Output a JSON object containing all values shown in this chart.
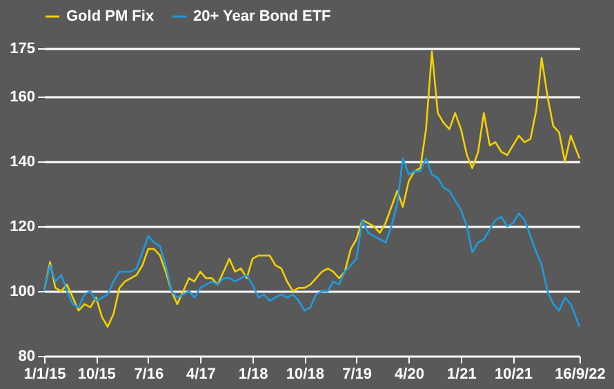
{
  "chart_data": {
    "type": "line",
    "xticks": [
      {
        "value": "2015-01-01",
        "label": "1/1/15"
      },
      {
        "value": "2015-10-01",
        "label": "10/15"
      },
      {
        "value": "2016-07-01",
        "label": "7/16"
      },
      {
        "value": "2017-04-01",
        "label": "4/17"
      },
      {
        "value": "2018-01-01",
        "label": "1/18"
      },
      {
        "value": "2018-10-01",
        "label": "10/18"
      },
      {
        "value": "2019-07-01",
        "label": "7/19"
      },
      {
        "value": "2020-04-01",
        "label": "4/20"
      },
      {
        "value": "2021-01-01",
        "label": "1/21"
      },
      {
        "value": "2021-10-01",
        "label": "10/21"
      },
      {
        "value": "2022-09-16",
        "label": "16/9/22"
      }
    ],
    "xlim": [
      "2015-01-01",
      "2022-09-16"
    ],
    "ylim": [
      80,
      175
    ],
    "yticks": [
      80,
      100,
      120,
      140,
      160,
      175
    ],
    "grid": "y",
    "legend": "top",
    "line_style": "solid",
    "marker": "none",
    "x": [
      "2015-01",
      "2015-02",
      "2015-03",
      "2015-04",
      "2015-05",
      "2015-06",
      "2015-07",
      "2015-08",
      "2015-09",
      "2015-10",
      "2015-11",
      "2015-12",
      "2016-01",
      "2016-02",
      "2016-03",
      "2016-04",
      "2016-05",
      "2016-06",
      "2016-07",
      "2016-08",
      "2016-09",
      "2016-10",
      "2016-11",
      "2016-12",
      "2017-01",
      "2017-02",
      "2017-03",
      "2017-04",
      "2017-05",
      "2017-06",
      "2017-07",
      "2017-08",
      "2017-09",
      "2017-10",
      "2017-11",
      "2017-12",
      "2018-01",
      "2018-02",
      "2018-03",
      "2018-04",
      "2018-05",
      "2018-06",
      "2018-07",
      "2018-08",
      "2018-09",
      "2018-10",
      "2018-11",
      "2018-12",
      "2019-01",
      "2019-02",
      "2019-03",
      "2019-04",
      "2019-05",
      "2019-06",
      "2019-07",
      "2019-08",
      "2019-09",
      "2019-10",
      "2019-11",
      "2019-12",
      "2020-01",
      "2020-02",
      "2020-03",
      "2020-04",
      "2020-05",
      "2020-06",
      "2020-07",
      "2020-08",
      "2020-09",
      "2020-10",
      "2020-11",
      "2020-12",
      "2021-01",
      "2021-02",
      "2021-03",
      "2021-04",
      "2021-05",
      "2021-06",
      "2021-07",
      "2021-08",
      "2021-09",
      "2021-10",
      "2021-11",
      "2021-12",
      "2022-01",
      "2022-02",
      "2022-03",
      "2022-04",
      "2022-05",
      "2022-06",
      "2022-07",
      "2022-08",
      "2022-09-16"
    ],
    "series": [
      {
        "name": "Gold PM Fix",
        "color": "#f5d000",
        "values": [
          100,
          109,
          101,
          100,
          102,
          98,
          94,
          96,
          95,
          98,
          92,
          89,
          93,
          101,
          103,
          104,
          105,
          108,
          113,
          113,
          111,
          106,
          100,
          96,
          100,
          104,
          103,
          106,
          104,
          104,
          102,
          106,
          110,
          106,
          107,
          104,
          110,
          111,
          111,
          111,
          108,
          107,
          103,
          100,
          101,
          101,
          102,
          104,
          106,
          107,
          106,
          104,
          106,
          113,
          116,
          122,
          121,
          120,
          118,
          121,
          126,
          131,
          126,
          134,
          137,
          138,
          150,
          174,
          155,
          152,
          150,
          155,
          150,
          142,
          138,
          143,
          155,
          145,
          146,
          143,
          142,
          145,
          148,
          146,
          147,
          156,
          172,
          160,
          151,
          149,
          140,
          148,
          141
        ]
      },
      {
        "name": "20+ Year Bond ETF",
        "color": "#1e9be0",
        "values": [
          100,
          108,
          103,
          105,
          100,
          96,
          95,
          99,
          100,
          97,
          98,
          99,
          103,
          106,
          106,
          106,
          107,
          112,
          117,
          115,
          114,
          108,
          100,
          98,
          99,
          100,
          98,
          101,
          102,
          103,
          102,
          104,
          104,
          103,
          104,
          105,
          102,
          98,
          99,
          97,
          98,
          99,
          98,
          99,
          97,
          94,
          95,
          99,
          100,
          100,
          103,
          102,
          106,
          108,
          110,
          122,
          118,
          117,
          116,
          115,
          120,
          127,
          141,
          136,
          137,
          137,
          141,
          136,
          135,
          132,
          131,
          128,
          125,
          120,
          112,
          115,
          116,
          119,
          122,
          123,
          120,
          121,
          124,
          122,
          117,
          112,
          108,
          100,
          96,
          94,
          98,
          96,
          89
        ]
      }
    ]
  }
}
